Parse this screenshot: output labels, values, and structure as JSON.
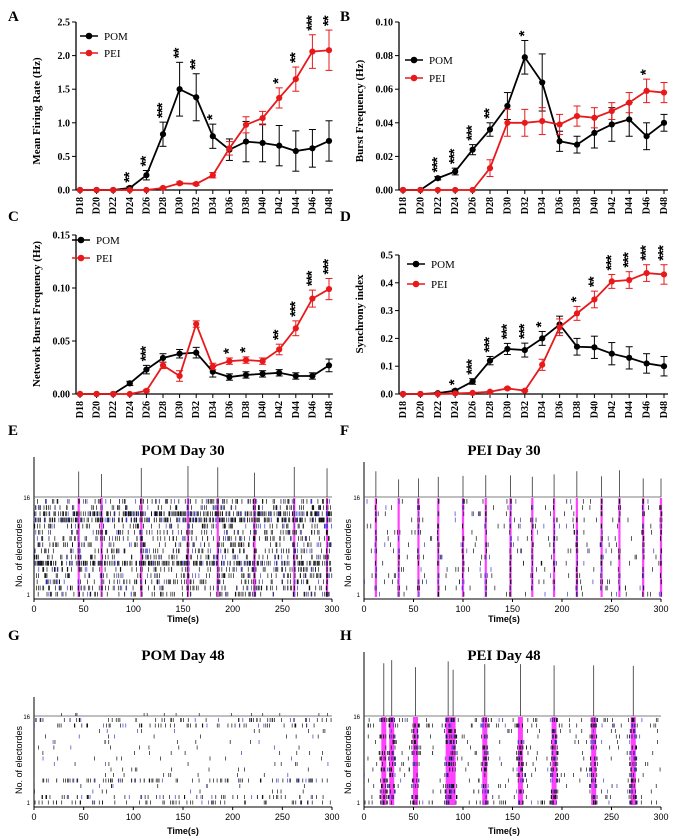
{
  "figure": {
    "colors": {
      "pom": "#000000",
      "pei": "#e8191b",
      "burst": "#ff00ff",
      "spike_blue": "#3a3ac8"
    },
    "star_label": "*"
  },
  "chart_data": [
    {
      "panel": "A",
      "type": "line",
      "x": [
        "D18",
        "D20",
        "D22",
        "D24",
        "D26",
        "D28",
        "D30",
        "D32",
        "D34",
        "D36",
        "D38",
        "D40",
        "D42",
        "D44",
        "D46",
        "D48"
      ],
      "ylabel": "Mean Firing Rate (Hz)",
      "ylim": [
        0,
        2.5
      ],
      "yticks": [
        "0.0",
        "0.5",
        "1.0",
        "1.5",
        "2.0",
        "2.5"
      ],
      "ytick_values": [
        0,
        0.5,
        1,
        1.5,
        2,
        2.5
      ],
      "legend": [
        "POM",
        "PEI"
      ],
      "series": [
        {
          "name": "POM",
          "values": [
            0,
            0,
            0,
            0.03,
            0.22,
            0.83,
            1.5,
            1.38,
            0.8,
            0.6,
            0.72,
            0.7,
            0.66,
            0.58,
            0.62,
            0.73
          ],
          "err": [
            0,
            0,
            0,
            0.02,
            0.07,
            0.18,
            0.4,
            0.35,
            0.18,
            0.16,
            0.3,
            0.28,
            0.3,
            0.3,
            0.28,
            0.3
          ]
        },
        {
          "name": "PEI",
          "values": [
            0,
            0,
            0,
            0,
            0,
            0.03,
            0.1,
            0.09,
            0.22,
            0.62,
            0.97,
            1.07,
            1.37,
            1.65,
            2.06,
            2.08
          ],
          "err": [
            0,
            0,
            0,
            0,
            0,
            0.01,
            0.02,
            0.02,
            0.04,
            0.1,
            0.12,
            0.1,
            0.15,
            0.18,
            0.25,
            0.3
          ]
        }
      ],
      "stars": [
        "",
        "",
        "",
        "**",
        "**",
        "***",
        "**",
        "**",
        "*",
        "",
        "",
        "",
        "*",
        "**",
        "***",
        "**"
      ]
    },
    {
      "panel": "B",
      "type": "line",
      "x": [
        "D18",
        "D20",
        "D22",
        "D24",
        "D26",
        "D28",
        "D30",
        "D32",
        "D34",
        "D36",
        "D38",
        "D40",
        "D42",
        "D44",
        "D46",
        "D48"
      ],
      "ylabel": "Burst Frequency (Hz)",
      "ylim": [
        0,
        0.1
      ],
      "yticks": [
        "0.00",
        "0.02",
        "0.04",
        "0.06",
        "0.08",
        "0.10"
      ],
      "ytick_values": [
        0,
        0.02,
        0.04,
        0.06,
        0.08,
        0.1
      ],
      "legend": [
        "POM",
        "PEI"
      ],
      "series": [
        {
          "name": "POM",
          "values": [
            0,
            0,
            0.007,
            0.011,
            0.024,
            0.036,
            0.05,
            0.079,
            0.064,
            0.029,
            0.027,
            0.034,
            0.039,
            0.042,
            0.032,
            0.04
          ],
          "err": [
            0,
            0,
            0.001,
            0.002,
            0.003,
            0.004,
            0.008,
            0.01,
            0.017,
            0.006,
            0.005,
            0.009,
            0.01,
            0.01,
            0.008,
            0.005
          ]
        },
        {
          "name": "PEI",
          "values": [
            0,
            0,
            0,
            0,
            0,
            0.013,
            0.04,
            0.04,
            0.041,
            0.039,
            0.044,
            0.043,
            0.047,
            0.052,
            0.059,
            0.058
          ],
          "err": [
            0,
            0,
            0,
            0,
            0,
            0.005,
            0.008,
            0.008,
            0.008,
            0.006,
            0.006,
            0.006,
            0.005,
            0.006,
            0.007,
            0.006
          ]
        }
      ],
      "stars": [
        "",
        "",
        "***",
        "***",
        "***",
        "**",
        "",
        "*",
        "",
        "",
        "",
        "",
        "",
        "",
        "*",
        ""
      ]
    },
    {
      "panel": "C",
      "type": "line",
      "x": [
        "D18",
        "D20",
        "D22",
        "D24",
        "D26",
        "D28",
        "D30",
        "D32",
        "D34",
        "D36",
        "D38",
        "D40",
        "D42",
        "D44",
        "D46",
        "D48"
      ],
      "ylabel": "Network Burst Frequency (Hz)",
      "ylim": [
        0,
        0.15
      ],
      "yticks": [
        "0.00",
        "0.05",
        "0.10",
        "0.15"
      ],
      "ytick_values": [
        0,
        0.05,
        0.1,
        0.15
      ],
      "legend": [
        "POM",
        "PEI"
      ],
      "series": [
        {
          "name": "POM",
          "values": [
            0,
            0,
            0,
            0.01,
            0.023,
            0.034,
            0.038,
            0.039,
            0.021,
            0.016,
            0.018,
            0.019,
            0.02,
            0.017,
            0.017,
            0.027
          ],
          "err": [
            0,
            0,
            0,
            0.002,
            0.004,
            0.004,
            0.004,
            0.005,
            0.005,
            0.003,
            0.003,
            0.003,
            0.003,
            0.003,
            0.003,
            0.006
          ]
        },
        {
          "name": "PEI",
          "values": [
            0,
            0,
            0,
            0,
            0.003,
            0.027,
            0.017,
            0.066,
            0.026,
            0.031,
            0.032,
            0.031,
            0.042,
            0.062,
            0.09,
            0.099
          ],
          "err": [
            0,
            0,
            0,
            0,
            0.001,
            0.003,
            0.005,
            0.003,
            0.003,
            0.003,
            0.003,
            0.003,
            0.005,
            0.007,
            0.008,
            0.01
          ]
        }
      ],
      "stars": [
        "",
        "",
        "",
        "",
        "***",
        "",
        "",
        "",
        "",
        "*",
        "*",
        "",
        "**",
        "***",
        "***",
        "***"
      ]
    },
    {
      "panel": "D",
      "type": "line",
      "x": [
        "D18",
        "D20",
        "D22",
        "D24",
        "D26",
        "D28",
        "D30",
        "D32",
        "D34",
        "D36",
        "D38",
        "D40",
        "D42",
        "D44",
        "D46",
        "D48"
      ],
      "ylabel": "Synchrony index",
      "ylim": [
        0,
        0.5
      ],
      "yticks": [
        "0.0",
        "0.1",
        "0.2",
        "0.3",
        "0.4",
        "0.5"
      ],
      "ytick_values": [
        0,
        0.1,
        0.2,
        0.3,
        0.4,
        0.5
      ],
      "legend": [
        "POM",
        "PEI"
      ],
      "series": [
        {
          "name": "POM",
          "values": [
            0,
            0,
            0.003,
            0.012,
            0.045,
            0.12,
            0.162,
            0.158,
            0.2,
            0.25,
            0.17,
            0.168,
            0.145,
            0.13,
            0.11,
            0.1
          ],
          "err": [
            0,
            0,
            0.002,
            0.005,
            0.01,
            0.015,
            0.02,
            0.025,
            0.025,
            0.03,
            0.03,
            0.04,
            0.04,
            0.04,
            0.035,
            0.035
          ]
        },
        {
          "name": "PEI",
          "values": [
            0,
            0,
            0,
            0.002,
            0.004,
            0.008,
            0.02,
            0.012,
            0.105,
            0.24,
            0.29,
            0.34,
            0.405,
            0.41,
            0.435,
            0.43
          ],
          "err": [
            0,
            0,
            0,
            0.001,
            0.001,
            0.002,
            0.004,
            0.004,
            0.02,
            0.03,
            0.025,
            0.03,
            0.025,
            0.03,
            0.03,
            0.035
          ]
        }
      ],
      "stars": [
        "",
        "",
        "",
        "*",
        "***",
        "***",
        "***",
        "***",
        "*",
        "",
        "*",
        "**",
        "***",
        "***",
        "***",
        "***"
      ]
    }
  ],
  "rasters": [
    {
      "panel": "E",
      "title": "POM Day 30",
      "ylabel": "No. of electordes",
      "xlabel": "Time(s)",
      "xticks": [
        "0",
        "50",
        "100",
        "150",
        "200",
        "250",
        "300"
      ],
      "xtick_values": [
        0,
        50,
        100,
        150,
        200,
        250,
        300
      ],
      "ytick_top": "16",
      "ytick_bottom": "1",
      "burst_times": [
        45,
        68,
        108,
        155,
        185,
        222,
        262,
        295
      ],
      "density": "high",
      "seed": 11
    },
    {
      "panel": "F",
      "title": "PEI Day 30",
      "ylabel": "No. of electordes",
      "xlabel": "Time(s)",
      "xticks": [
        "0",
        "50",
        "100",
        "150",
        "200",
        "250",
        "300"
      ],
      "xtick_values": [
        0,
        50,
        100,
        150,
        200,
        250,
        300
      ],
      "ytick_top": "16",
      "ytick_bottom": "1",
      "burst_times": [
        12,
        35,
        55,
        75,
        100,
        123,
        148,
        170,
        192,
        215,
        240,
        258,
        282,
        300
      ],
      "density": "sparse",
      "seed": 23
    },
    {
      "panel": "G",
      "title": "POM Day 48",
      "ylabel": "No. of electordes",
      "xlabel": "Time(s)",
      "xticks": [
        "0",
        "50",
        "100",
        "150",
        "200",
        "250",
        "300"
      ],
      "xtick_values": [
        0,
        50,
        100,
        150,
        200,
        250,
        300
      ],
      "ytick_top": "16",
      "ytick_bottom": "1",
      "burst_times": [],
      "density": "low",
      "seed": 37
    },
    {
      "panel": "H",
      "title": "PEI Day 48",
      "ylabel": "No. of electordes",
      "xlabel": "Time(s)",
      "xticks": [
        "0",
        "50",
        "100",
        "150",
        "200",
        "250",
        "300"
      ],
      "xtick_values": [
        0,
        50,
        100,
        150,
        200,
        250,
        300
      ],
      "ytick_top": "16",
      "ytick_bottom": "1",
      "burst_times": [
        20,
        28,
        52,
        85,
        90,
        122,
        158,
        192,
        232,
        272
      ],
      "density": "bursty",
      "seed": 53
    }
  ]
}
